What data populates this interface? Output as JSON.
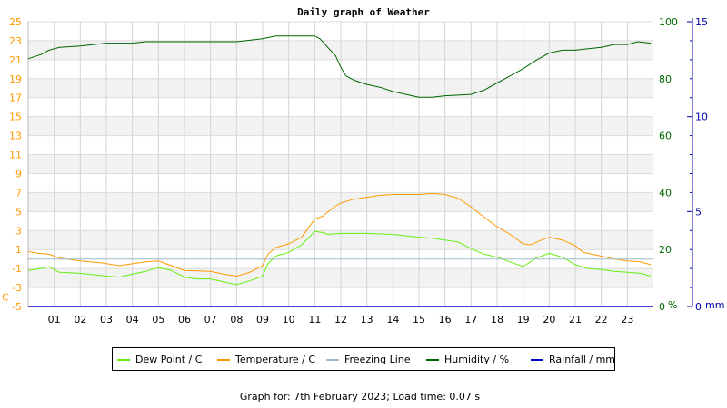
{
  "chart_data": {
    "type": "line",
    "title": "Daily graph of Weather",
    "x_ticks": [
      "01",
      "02",
      "03",
      "04",
      "05",
      "06",
      "07",
      "08",
      "09",
      "10",
      "11",
      "12",
      "13",
      "14",
      "15",
      "16",
      "17",
      "18",
      "19",
      "20",
      "21",
      "22",
      "23"
    ],
    "xlim": [
      0,
      24
    ],
    "left_axis": {
      "unit_label": "C",
      "ylim": [
        -5,
        25
      ],
      "ticks": [
        "-5",
        "-3",
        "-1",
        "1",
        "3",
        "5",
        "7",
        "9",
        "11",
        "13",
        "15",
        "17",
        "19",
        "21",
        "23",
        "25"
      ],
      "color": "#ff9900"
    },
    "right_axis_humidity": {
      "unit_label": "%",
      "ylim": [
        0,
        100
      ],
      "ticks": [
        "0",
        "20",
        "40",
        "60",
        "80",
        "100"
      ],
      "color": "#006600"
    },
    "right_axis_rain": {
      "unit_label": "mm",
      "ylim": [
        0,
        15
      ],
      "ticks": [
        "0",
        "5",
        "10",
        "15"
      ],
      "color": "#0000aa"
    },
    "grid": true,
    "legend_position": "bottom",
    "series": [
      {
        "name": "Dew Point / C",
        "axis": "temp",
        "color": "#66ee11",
        "points": [
          [
            0,
            -1.2
          ],
          [
            0.5,
            -1.0
          ],
          [
            0.8,
            -0.8
          ],
          [
            1.2,
            -1.4
          ],
          [
            2,
            -1.5
          ],
          [
            3,
            -1.8
          ],
          [
            3.5,
            -1.9
          ],
          [
            4,
            -1.6
          ],
          [
            4.5,
            -1.3
          ],
          [
            5,
            -0.9
          ],
          [
            5.5,
            -1.2
          ],
          [
            6,
            -1.9
          ],
          [
            6.5,
            -2.1
          ],
          [
            7,
            -2.1
          ],
          [
            7.5,
            -2.4
          ],
          [
            8,
            -2.7
          ],
          [
            8.5,
            -2.3
          ],
          [
            9,
            -1.8
          ],
          [
            9.2,
            -0.5
          ],
          [
            9.5,
            0.3
          ],
          [
            10,
            0.7
          ],
          [
            10.5,
            1.5
          ],
          [
            11,
            2.9
          ],
          [
            11.3,
            2.8
          ],
          [
            11.5,
            2.6
          ],
          [
            12,
            2.7
          ],
          [
            13,
            2.7
          ],
          [
            14,
            2.6
          ],
          [
            15,
            2.3
          ],
          [
            15.5,
            2.2
          ],
          [
            16,
            2.0
          ],
          [
            16.5,
            1.8
          ],
          [
            17,
            1.1
          ],
          [
            17.5,
            0.5
          ],
          [
            18,
            0.2
          ],
          [
            18.5,
            -0.3
          ],
          [
            19,
            -0.8
          ],
          [
            19.5,
            0.1
          ],
          [
            20,
            0.6
          ],
          [
            20.5,
            0.2
          ],
          [
            21,
            -0.6
          ],
          [
            21.5,
            -1.0
          ],
          [
            22,
            -1.1
          ],
          [
            22.5,
            -1.3
          ],
          [
            23,
            -1.4
          ],
          [
            23.5,
            -1.5
          ],
          [
            23.9,
            -1.8
          ]
        ]
      },
      {
        "name": "Temperature / C",
        "axis": "temp",
        "color": "#ff9900",
        "points": [
          [
            0,
            0.8
          ],
          [
            0.4,
            0.6
          ],
          [
            0.8,
            0.5
          ],
          [
            1.2,
            0.1
          ],
          [
            2,
            -0.2
          ],
          [
            2.8,
            -0.4
          ],
          [
            3.5,
            -0.7
          ],
          [
            4,
            -0.5
          ],
          [
            4.5,
            -0.3
          ],
          [
            5,
            -0.2
          ],
          [
            5.5,
            -0.7
          ],
          [
            6,
            -1.2
          ],
          [
            7,
            -1.3
          ],
          [
            7.5,
            -1.6
          ],
          [
            8,
            -1.8
          ],
          [
            8.5,
            -1.4
          ],
          [
            9,
            -0.7
          ],
          [
            9.2,
            0.5
          ],
          [
            9.5,
            1.2
          ],
          [
            10,
            1.6
          ],
          [
            10.5,
            2.3
          ],
          [
            11,
            4.2
          ],
          [
            11.3,
            4.5
          ],
          [
            11.7,
            5.4
          ],
          [
            12,
            5.9
          ],
          [
            12.5,
            6.3
          ],
          [
            13,
            6.5
          ],
          [
            13.5,
            6.7
          ],
          [
            14,
            6.8
          ],
          [
            15,
            6.8
          ],
          [
            15.5,
            6.9
          ],
          [
            16,
            6.8
          ],
          [
            16.5,
            6.4
          ],
          [
            17,
            5.5
          ],
          [
            17.5,
            4.4
          ],
          [
            18,
            3.4
          ],
          [
            18.5,
            2.6
          ],
          [
            19,
            1.6
          ],
          [
            19.3,
            1.5
          ],
          [
            19.7,
            2.0
          ],
          [
            20,
            2.3
          ],
          [
            20.5,
            2.0
          ],
          [
            21,
            1.4
          ],
          [
            21.3,
            0.7
          ],
          [
            22,
            0.3
          ],
          [
            22.5,
            0.0
          ],
          [
            23,
            -0.2
          ],
          [
            23.5,
            -0.3
          ],
          [
            23.9,
            -0.6
          ]
        ]
      },
      {
        "name": "Freezing Line",
        "axis": "temp",
        "color": "#99bbcc",
        "points": [
          [
            0,
            0
          ],
          [
            24,
            0
          ]
        ]
      },
      {
        "name": "Humidity / %",
        "axis": "humidity",
        "color": "#006600",
        "points": [
          [
            0,
            87
          ],
          [
            0.5,
            88.5
          ],
          [
            0.8,
            90
          ],
          [
            1.2,
            91
          ],
          [
            2,
            91.5
          ],
          [
            3,
            92.5
          ],
          [
            4,
            92.5
          ],
          [
            4.5,
            93
          ],
          [
            5,
            93
          ],
          [
            6,
            93
          ],
          [
            7,
            93
          ],
          [
            8,
            93
          ],
          [
            9,
            94
          ],
          [
            9.5,
            95
          ],
          [
            10,
            95
          ],
          [
            11,
            95
          ],
          [
            11.2,
            94
          ],
          [
            11.5,
            91
          ],
          [
            11.8,
            88
          ],
          [
            12,
            84
          ],
          [
            12.2,
            81
          ],
          [
            12.5,
            79.5
          ],
          [
            13,
            78
          ],
          [
            13.5,
            77
          ],
          [
            14,
            75.5
          ],
          [
            14.5,
            74.5
          ],
          [
            15,
            73.5
          ],
          [
            15.5,
            73.5
          ],
          [
            16,
            74
          ],
          [
            17,
            74.5
          ],
          [
            17.5,
            76
          ],
          [
            18,
            78.5
          ],
          [
            18.5,
            81
          ],
          [
            19,
            83.5
          ],
          [
            19.5,
            86.5
          ],
          [
            20,
            89
          ],
          [
            20.5,
            90
          ],
          [
            21,
            90
          ],
          [
            21.5,
            90.5
          ],
          [
            22,
            91
          ],
          [
            22.5,
            92
          ],
          [
            23,
            92
          ],
          [
            23.4,
            93
          ],
          [
            23.9,
            92.5
          ]
        ]
      },
      {
        "name": "Rainfall / mm",
        "axis": "rain",
        "color": "#0000cc",
        "points": [
          [
            0,
            0
          ],
          [
            24,
            0
          ]
        ]
      }
    ]
  },
  "footer_text": "Graph for: 7th February 2023; Load time: 0.07 s"
}
